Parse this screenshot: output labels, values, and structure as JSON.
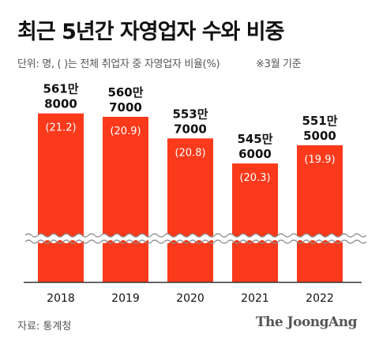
{
  "title": "최근 5년간 자영업자 수와 비중",
  "subtitle": "단위: 명, ( )는 전체 취업자 중 자영업자 비율(%)",
  "note": "※3월 기준",
  "source": "자료: 통계청",
  "brand": "The JoongAng",
  "colors": {
    "bar": "#fb3a1c",
    "text": "#111111",
    "axis": "#333333"
  },
  "chart_data": {
    "type": "bar",
    "categories": [
      "2018",
      "2019",
      "2020",
      "2021",
      "2022"
    ],
    "values": [
      5618000,
      5607000,
      5537000,
      5456000,
      5515000
    ],
    "value_labels": [
      [
        "561만",
        "8000"
      ],
      [
        "560만",
        "7000"
      ],
      [
        "553만",
        "7000"
      ],
      [
        "545만",
        "6000"
      ],
      [
        "551만",
        "5000"
      ]
    ],
    "share_labels": [
      "(21.2)",
      "(20.9)",
      "(20.8)",
      "(20.3)",
      "(19.9)"
    ],
    "share_values": [
      21.2,
      20.9,
      20.8,
      20.3,
      19.9
    ],
    "axis_break": true,
    "ylim": [
      5420000,
      5640000
    ]
  }
}
